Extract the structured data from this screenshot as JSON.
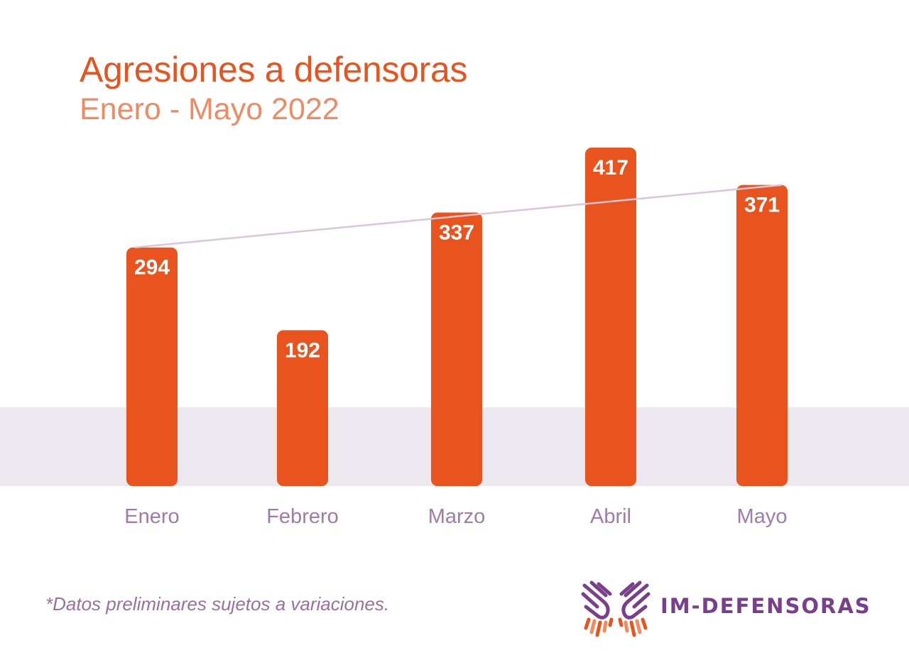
{
  "header": {
    "title": "Agresiones a defensoras",
    "subtitle": "Enero - Mayo 2022"
  },
  "footnote": "*Datos preliminares sujetos a variaciones.",
  "logo": {
    "text": "IM-DEFENSORAS",
    "icon": "hands-icon"
  },
  "colors": {
    "bar": "#e8531e",
    "title": "#e8531e",
    "subtitle": "#f08a62",
    "label": "#a07aaa",
    "band": "#ede7ef",
    "trendline": "#d9c6dc",
    "logo_purple": "#7a3f8c"
  },
  "chart_data": {
    "type": "bar",
    "title": "Agresiones a defensoras",
    "subtitle": "Enero - Mayo 2022",
    "categories": [
      "Enero",
      "Febrero",
      "Marzo",
      "Abril",
      "Mayo"
    ],
    "values": [
      294,
      192,
      337,
      417,
      371
    ],
    "data_labels": [
      "294",
      "192",
      "337",
      "417",
      "371"
    ],
    "xlabel": "",
    "ylabel": "",
    "ylim": [
      0,
      417
    ],
    "grid": false,
    "legend": "none",
    "trendline": {
      "from": "Enero",
      "to": "Mayo",
      "start_value": 294,
      "end_value": 371
    },
    "background_band": {
      "from_value": 0,
      "to_value": 97
    }
  }
}
